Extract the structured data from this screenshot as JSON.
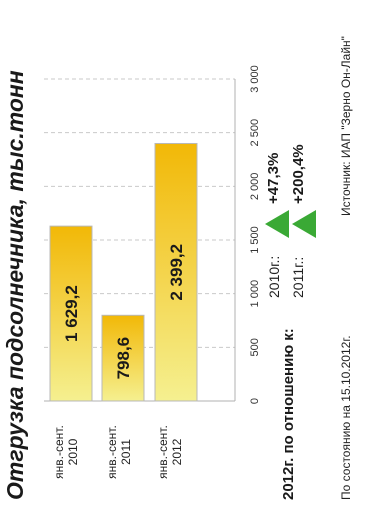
{
  "title": "Отгрузка подсолнечника, тыс.тонн",
  "chart_data": {
    "type": "bar",
    "orientation": "horizontal",
    "categories": [
      [
        "янв.-сент.",
        "2010"
      ],
      [
        "янв.-сент.",
        "2011"
      ],
      [
        "янв.-сент.",
        "2012"
      ]
    ],
    "values": [
      1629.2,
      798.6,
      2399.2
    ],
    "value_labels": [
      "1 629,2",
      "798,6",
      "2 399,2"
    ],
    "xlim": [
      0,
      3000
    ],
    "ticks": [
      0,
      500,
      1000,
      1500,
      2000,
      2500,
      3000
    ],
    "tick_labels": [
      "0",
      "500",
      "1 000",
      "1 500",
      "2 000",
      "2 500",
      "3 000"
    ],
    "grid": true,
    "bar_colors": {
      "start": "#f5f090",
      "end": "#f2b807",
      "edge": "#b8b8b8"
    }
  },
  "comparison": {
    "heading": "2012г. по отношению к:",
    "items": [
      {
        "label": "2010г.:",
        "value": "+47,3%"
      },
      {
        "label": "2011г.:",
        "value": "+200,4%"
      }
    ],
    "arrow_color": "#3aa935"
  },
  "footer": {
    "date_note": "По состоянию на 15.10.2012г.",
    "source": "Источник: ИАП \"Зерно Он-Лайн\""
  }
}
